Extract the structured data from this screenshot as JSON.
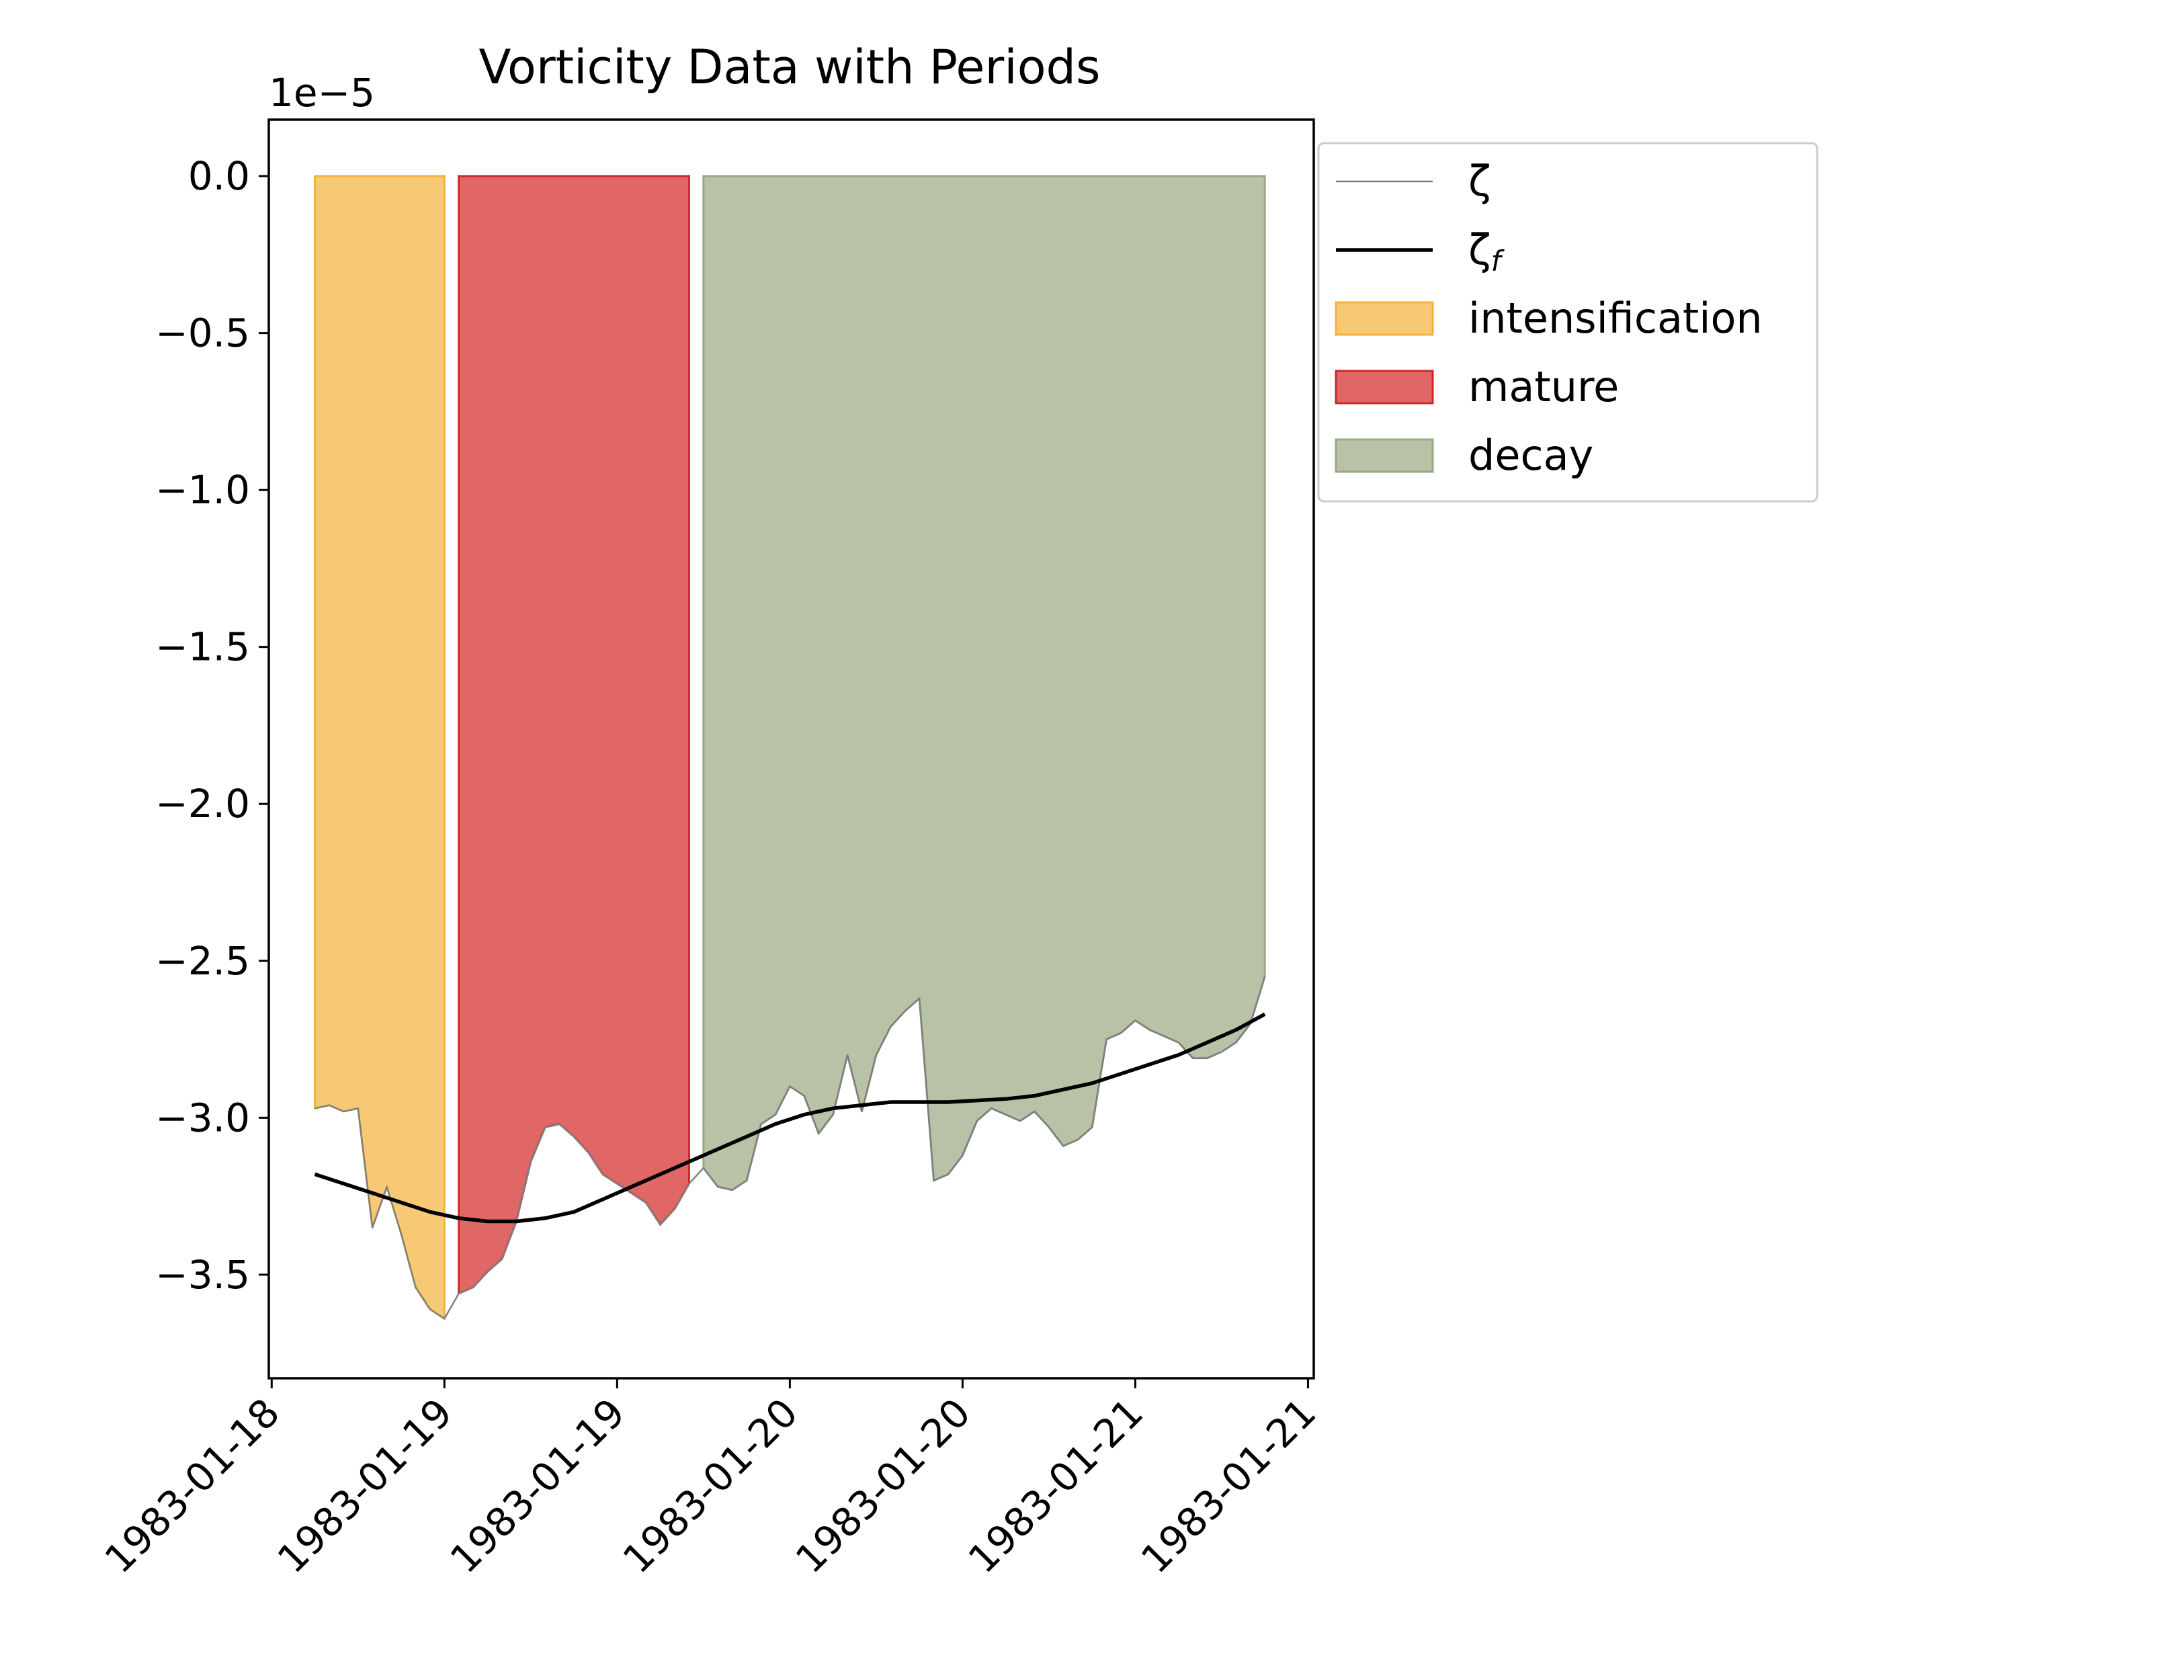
{
  "chart_data": {
    "type": "line",
    "title": "Vorticity Data with Periods",
    "y_offset_label": "1e−5",
    "xlabel": "",
    "ylabel": "",
    "x_units": "hours since 1983-01-18 00:00",
    "xlim": [
      -0.2,
      72.4
    ],
    "ylim": [
      -3.83,
      0.18
    ],
    "x_ticks": [
      {
        "x": 0,
        "label": "1983-01-18"
      },
      {
        "x": 12,
        "label": "1983-01-19"
      },
      {
        "x": 24,
        "label": "1983-01-19"
      },
      {
        "x": 36,
        "label": "1983-01-20"
      },
      {
        "x": 48,
        "label": "1983-01-20"
      },
      {
        "x": 60,
        "label": "1983-01-21"
      },
      {
        "x": 72,
        "label": "1983-01-21"
      }
    ],
    "y_ticks": [
      {
        "y": 0.0,
        "label": "0.0"
      },
      {
        "y": -0.5,
        "label": "−0.5"
      },
      {
        "y": -1.0,
        "label": "−1.0"
      },
      {
        "y": -1.5,
        "label": "−1.5"
      },
      {
        "y": -2.0,
        "label": "−2.0"
      },
      {
        "y": -2.5,
        "label": "−2.5"
      },
      {
        "y": -3.0,
        "label": "−3.0"
      },
      {
        "y": -3.5,
        "label": "−3.5"
      }
    ],
    "grid": false,
    "legend_position": "outside-upper-right",
    "periods": [
      {
        "name": "intensification",
        "start": 3,
        "end": 12,
        "color": "#f5b23a",
        "edge": "#f5b23a",
        "opacity": 0.7
      },
      {
        "name": "mature",
        "start": 13,
        "end": 29,
        "color": "#d42525",
        "edge": "#d42525",
        "opacity": 0.7
      },
      {
        "name": "decay",
        "start": 30,
        "end": 69,
        "color": "#98a880",
        "edge": "#98a880",
        "opacity": 0.7
      }
    ],
    "series": [
      {
        "name": "ζ",
        "color": "#7f7f7f",
        "width": 2.5,
        "x": [
          3,
          4,
          5,
          6,
          7,
          8,
          9,
          10,
          11,
          12,
          13,
          14,
          15,
          16,
          17,
          18,
          19,
          20,
          21,
          22,
          23,
          24,
          25,
          26,
          27,
          28,
          29,
          30,
          31,
          32,
          33,
          34,
          35,
          36,
          37,
          38,
          39,
          40,
          41,
          42,
          43,
          44,
          45,
          46,
          47,
          48,
          49,
          50,
          51,
          52,
          53,
          54,
          55,
          56,
          57,
          58,
          59,
          60,
          61,
          62,
          63,
          64,
          65,
          66,
          67,
          68,
          69
        ],
        "y": [
          -2.97,
          -2.96,
          -2.98,
          -2.97,
          -3.35,
          -3.22,
          -3.37,
          -3.54,
          -3.61,
          -3.64,
          -3.56,
          -3.54,
          -3.49,
          -3.45,
          -3.33,
          -3.14,
          -3.03,
          -3.02,
          -3.06,
          -3.11,
          -3.18,
          -3.21,
          -3.24,
          -3.27,
          -3.34,
          -3.29,
          -3.21,
          -3.16,
          -3.22,
          -3.23,
          -3.2,
          -3.02,
          -2.99,
          -2.9,
          -2.93,
          -3.05,
          -2.99,
          -2.8,
          -2.98,
          -2.8,
          -2.71,
          -2.66,
          -2.62,
          -3.2,
          -3.18,
          -3.12,
          -3.01,
          -2.97,
          -2.99,
          -3.01,
          -2.98,
          -3.03,
          -3.09,
          -3.07,
          -3.03,
          -2.75,
          -2.73,
          -2.69,
          -2.72,
          -2.74,
          -2.76,
          -2.81,
          -2.81,
          -2.79,
          -2.76,
          -2.7,
          -2.55
        ]
      },
      {
        "name": "ζf",
        "color": "#000000",
        "width": 5.5,
        "x": [
          3,
          5,
          7,
          9,
          11,
          13,
          15,
          17,
          19,
          21,
          23,
          25,
          27,
          29,
          31,
          33,
          35,
          37,
          39,
          41,
          43,
          45,
          47,
          49,
          51,
          53,
          55,
          57,
          59,
          61,
          63,
          65,
          67,
          69
        ],
        "y": [
          -3.18,
          -3.21,
          -3.24,
          -3.27,
          -3.3,
          -3.32,
          -3.33,
          -3.33,
          -3.32,
          -3.3,
          -3.26,
          -3.22,
          -3.18,
          -3.14,
          -3.1,
          -3.06,
          -3.02,
          -2.99,
          -2.97,
          -2.96,
          -2.95,
          -2.95,
          -2.95,
          -2.945,
          -2.94,
          -2.93,
          -2.91,
          -2.89,
          -2.86,
          -2.83,
          -2.8,
          -2.76,
          -2.72,
          -2.67
        ]
      }
    ]
  },
  "legend": [
    {
      "kind": "line",
      "label": "ζ",
      "color": "#7f7f7f",
      "width": 2.5
    },
    {
      "kind": "line",
      "label": "ζ",
      "sub": "f",
      "color": "#000000",
      "width": 5.5
    },
    {
      "kind": "patch",
      "label": "intensification",
      "color": "#f5b23a"
    },
    {
      "kind": "patch",
      "label": "mature",
      "color": "#d42525"
    },
    {
      "kind": "patch",
      "label": "decay",
      "color": "#98a880"
    }
  ]
}
